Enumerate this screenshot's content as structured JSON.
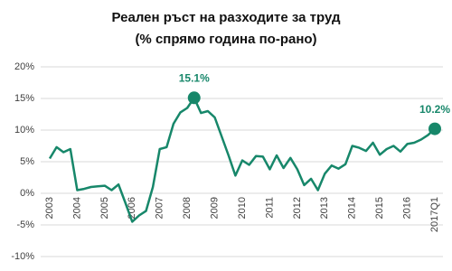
{
  "chart_data": {
    "type": "line",
    "title": [
      "Реален ръст на разходите за труд",
      "(% спрямо година по-рано)"
    ],
    "categories": [
      "2003",
      null,
      null,
      null,
      "2004",
      null,
      null,
      null,
      "2005",
      null,
      null,
      null,
      "2006",
      null,
      null,
      null,
      "2007",
      null,
      null,
      null,
      "2008",
      null,
      null,
      null,
      "2009",
      null,
      null,
      null,
      "2010",
      null,
      null,
      null,
      "2011",
      null,
      null,
      null,
      "2012",
      null,
      null,
      null,
      "2013",
      null,
      null,
      null,
      "2014",
      null,
      null,
      null,
      "2015",
      null,
      null,
      null,
      "2016",
      null,
      null,
      null,
      "2017Q1"
    ],
    "series": [
      {
        "color": "#17876a",
        "values": [
          5.5,
          7.3,
          6.5,
          7.0,
          0.5,
          0.7,
          1.0,
          1.1,
          1.2,
          0.5,
          1.4,
          -1.5,
          -4.5,
          -3.5,
          -2.8,
          1.0,
          7.0,
          7.3,
          11.0,
          12.8,
          13.5,
          15.1,
          12.7,
          13.0,
          12.0,
          9.0,
          6.0,
          2.8,
          5.2,
          4.5,
          5.9,
          5.8,
          3.8,
          6.0,
          4.0,
          5.6,
          3.8,
          1.3,
          2.3,
          0.5,
          3.1,
          4.4,
          3.9,
          4.6,
          7.5,
          7.2,
          6.7,
          8.0,
          6.1,
          7.0,
          7.5,
          6.6,
          7.8,
          8.0,
          8.5,
          9.2,
          10.2
        ],
        "value_labels": [
          null,
          null,
          null,
          null,
          null,
          null,
          null,
          null,
          null,
          null,
          null,
          null,
          null,
          null,
          null,
          null,
          null,
          null,
          null,
          null,
          null,
          "15.1%",
          null,
          null,
          null,
          null,
          null,
          null,
          null,
          null,
          null,
          null,
          null,
          null,
          null,
          null,
          null,
          null,
          null,
          null,
          null,
          null,
          null,
          null,
          null,
          null,
          null,
          null,
          null,
          null,
          null,
          null,
          null,
          null,
          null,
          null,
          "10.2%"
        ]
      }
    ],
    "ylim": [
      -10,
      20
    ],
    "yticks": [
      {
        "value": -10,
        "label": "-10%"
      },
      {
        "value": -5,
        "label": "-5%"
      },
      {
        "value": 0,
        "label": "0%"
      },
      {
        "value": 5,
        "label": "5%"
      },
      {
        "value": 10,
        "label": "10%"
      },
      {
        "value": 15,
        "label": "15%"
      },
      {
        "value": 20,
        "label": "20%"
      }
    ],
    "grid": true
  }
}
